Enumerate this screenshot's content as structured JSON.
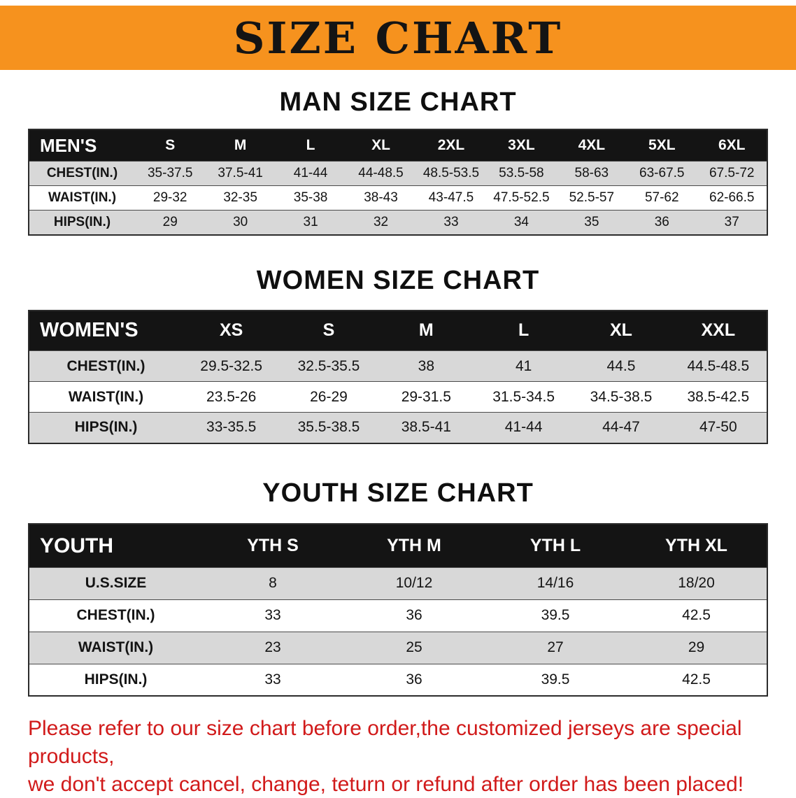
{
  "banner": {
    "title": "SIZE CHART",
    "bg_color": "#f6921e"
  },
  "sections": [
    {
      "heading": "MAN SIZE CHART",
      "table": {
        "header": [
          "MEN'S",
          "S",
          "M",
          "L",
          "XL",
          "2XL",
          "3XL",
          "4XL",
          "5XL",
          "6XL"
        ],
        "rows": [
          [
            "CHEST(IN.)",
            "35-37.5",
            "37.5-41",
            "41-44",
            "44-48.5",
            "48.5-53.5",
            "53.5-58",
            "58-63",
            "63-67.5",
            "67.5-72"
          ],
          [
            "WAIST(IN.)",
            "29-32",
            "32-35",
            "35-38",
            "38-43",
            "43-47.5",
            "47.5-52.5",
            "52.5-57",
            "57-62",
            "62-66.5"
          ],
          [
            "HIPS(IN.)",
            "29",
            "30",
            "31",
            "32",
            "33",
            "34",
            "35",
            "36",
            "37"
          ]
        ]
      }
    },
    {
      "heading": "WOMEN SIZE CHART",
      "table": {
        "header": [
          "WOMEN'S",
          "XS",
          "S",
          "M",
          "L",
          "XL",
          "XXL"
        ],
        "rows": [
          [
            "CHEST(IN.)",
            "29.5-32.5",
            "32.5-35.5",
            "38",
            "41",
            "44.5",
            "44.5-48.5"
          ],
          [
            "WAIST(IN.)",
            "23.5-26",
            "26-29",
            "29-31.5",
            "31.5-34.5",
            "34.5-38.5",
            "38.5-42.5"
          ],
          [
            "HIPS(IN.)",
            "33-35.5",
            "35.5-38.5",
            "38.5-41",
            "41-44",
            "44-47",
            "47-50"
          ]
        ]
      }
    },
    {
      "heading": "YOUTH SIZE CHART",
      "table": {
        "header": [
          "YOUTH",
          "YTH S",
          "YTH M",
          "YTH L",
          "YTH XL"
        ],
        "rows": [
          [
            "U.S.SIZE",
            "8",
            "10/12",
            "14/16",
            "18/20"
          ],
          [
            "CHEST(IN.)",
            "33",
            "36",
            "39.5",
            "42.5"
          ],
          [
            "WAIST(IN.)",
            "23",
            "25",
            "27",
            "29"
          ],
          [
            "HIPS(IN.)",
            "33",
            "36",
            "39.5",
            "42.5"
          ]
        ]
      }
    }
  ],
  "disclaimer": {
    "line1": "Please refer to our size chart before order,the customized jerseys are special products,",
    "line2": "we don't accept cancel, change, teturn or refund after order has been placed!",
    "color": "#d11a1a"
  },
  "chart_data": [
    {
      "type": "table",
      "title": "MAN SIZE CHART",
      "columns": [
        "MEN'S",
        "S",
        "M",
        "L",
        "XL",
        "2XL",
        "3XL",
        "4XL",
        "5XL",
        "6XL"
      ],
      "rows": [
        [
          "CHEST(IN.)",
          "35-37.5",
          "37.5-41",
          "41-44",
          "44-48.5",
          "48.5-53.5",
          "53.5-58",
          "58-63",
          "63-67.5",
          "67.5-72"
        ],
        [
          "WAIST(IN.)",
          "29-32",
          "32-35",
          "35-38",
          "38-43",
          "43-47.5",
          "47.5-52.5",
          "52.5-57",
          "57-62",
          "62-66.5"
        ],
        [
          "HIPS(IN.)",
          "29",
          "30",
          "31",
          "32",
          "33",
          "34",
          "35",
          "36",
          "37"
        ]
      ]
    },
    {
      "type": "table",
      "title": "WOMEN SIZE CHART",
      "columns": [
        "WOMEN'S",
        "XS",
        "S",
        "M",
        "L",
        "XL",
        "XXL"
      ],
      "rows": [
        [
          "CHEST(IN.)",
          "29.5-32.5",
          "32.5-35.5",
          "38",
          "41",
          "44.5",
          "44.5-48.5"
        ],
        [
          "WAIST(IN.)",
          "23.5-26",
          "26-29",
          "29-31.5",
          "31.5-34.5",
          "34.5-38.5",
          "38.5-42.5"
        ],
        [
          "HIPS(IN.)",
          "33-35.5",
          "35.5-38.5",
          "38.5-41",
          "41-44",
          "44-47",
          "47-50"
        ]
      ]
    },
    {
      "type": "table",
      "title": "YOUTH SIZE CHART",
      "columns": [
        "YOUTH",
        "YTH S",
        "YTH M",
        "YTH L",
        "YTH XL"
      ],
      "rows": [
        [
          "U.S.SIZE",
          "8",
          "10/12",
          "14/16",
          "18/20"
        ],
        [
          "CHEST(IN.)",
          "33",
          "36",
          "39.5",
          "42.5"
        ],
        [
          "WAIST(IN.)",
          "23",
          "25",
          "27",
          "29"
        ],
        [
          "HIPS(IN.)",
          "33",
          "36",
          "39.5",
          "42.5"
        ]
      ]
    }
  ]
}
